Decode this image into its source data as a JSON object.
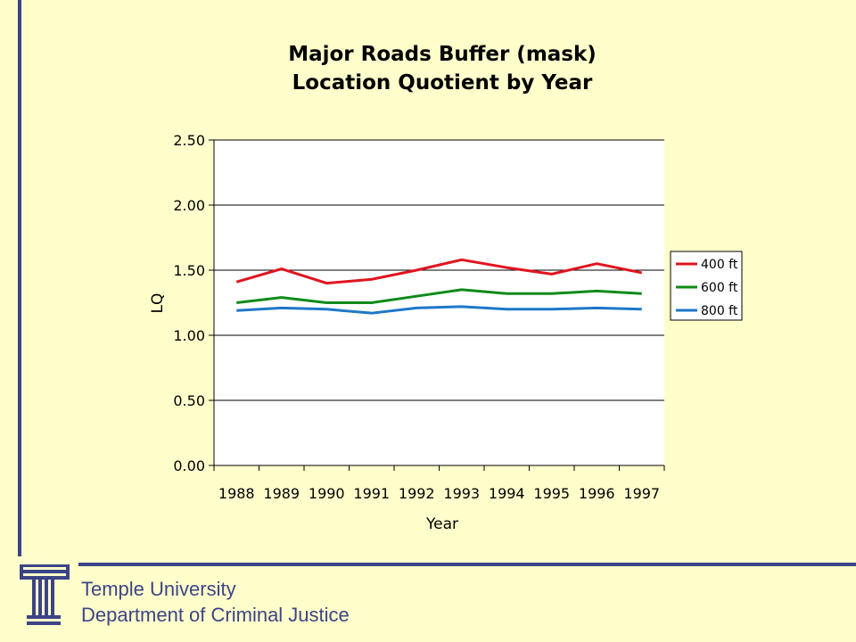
{
  "footer": {
    "line1": "Temple University",
    "line2": "Department of Criminal Justice"
  },
  "colors": {
    "background": "#FFFFCC",
    "accent": "#3C4486",
    "plot_background": "#FFFFFF"
  },
  "chart_data": {
    "type": "line",
    "title": [
      "Major Roads Buffer (mask)",
      "Location Quotient by Year"
    ],
    "xlabel": "Year",
    "ylabel": "LQ",
    "categories": [
      "1988",
      "1989",
      "1990",
      "1991",
      "1992",
      "1993",
      "1994",
      "1995",
      "1996",
      "1997"
    ],
    "ylim": [
      0,
      2.5
    ],
    "yticks": [
      "0.00",
      "0.50",
      "1.00",
      "1.50",
      "2.00",
      "2.50"
    ],
    "grid": true,
    "legend_position": "right",
    "series": [
      {
        "name": "400 ft",
        "color": "#E0141E",
        "values": [
          1.41,
          1.51,
          1.4,
          1.43,
          1.5,
          1.58,
          1.52,
          1.47,
          1.55,
          1.48
        ]
      },
      {
        "name": "600 ft",
        "color": "#108A1A",
        "values": [
          1.25,
          1.29,
          1.25,
          1.25,
          1.3,
          1.35,
          1.32,
          1.32,
          1.34,
          1.32
        ]
      },
      {
        "name": "800 ft",
        "color": "#1E78C8",
        "values": [
          1.19,
          1.21,
          1.2,
          1.17,
          1.21,
          1.22,
          1.2,
          1.2,
          1.21,
          1.2
        ]
      }
    ]
  }
}
